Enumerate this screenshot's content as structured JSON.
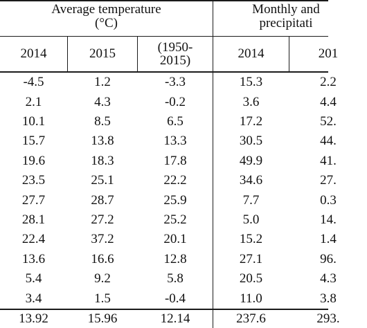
{
  "headers": {
    "group1_line1": "Average temperature",
    "group1_line2": "(°C)",
    "group2_line1": "Monthly and",
    "group2_line2": "precipitati"
  },
  "subheaders": {
    "c1": "2014",
    "c2": "2015",
    "c3_line1": "(1950-",
    "c3_line2": "2015)",
    "c4": "2014",
    "c5": "201"
  },
  "rows": [
    [
      "-4.5",
      "1.2",
      "-3.3",
      "15.3",
      "2.2"
    ],
    [
      "2.1",
      "4.3",
      "-0.2",
      "3.6",
      "4.4"
    ],
    [
      "10.1",
      "8.5",
      "6.5",
      "17.2",
      "52."
    ],
    [
      "15.7",
      "13.8",
      "13.3",
      "30.5",
      "44."
    ],
    [
      "19.6",
      "18.3",
      "17.8",
      "49.9",
      "41."
    ],
    [
      "23.5",
      "25.1",
      "22.2",
      "34.6",
      "27."
    ],
    [
      "27.7",
      "28.7",
      "25.9",
      "7.7",
      "0.3"
    ],
    [
      "28.1",
      "27.2",
      "25.2",
      "5.0",
      "14."
    ],
    [
      "22.4",
      "37.2",
      "20.1",
      "15.2",
      "1.4"
    ],
    [
      "13.6",
      "16.6",
      "12.8",
      "27.1",
      "96."
    ],
    [
      "5.4",
      "9.2",
      "5.8",
      "20.5",
      "4.3"
    ],
    [
      "3.4",
      "1.5",
      "-0.4",
      "11.0",
      "3.8"
    ]
  ],
  "totals": [
    "13.92",
    "15.96",
    "12.14",
    "237.6",
    "293."
  ]
}
